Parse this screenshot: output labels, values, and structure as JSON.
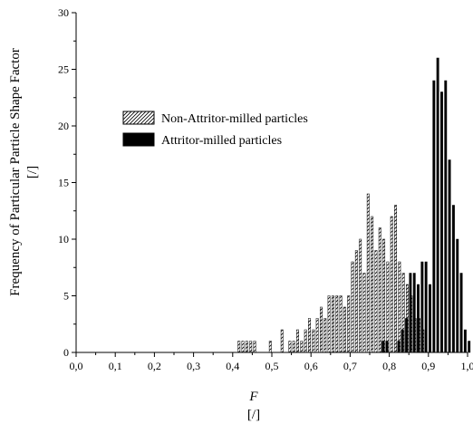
{
  "chart_data": {
    "type": "bar",
    "xlabel": "F",
    "xunit": "[/]",
    "ylabel": "Frequency of Particular Particle Shape Factor",
    "yunit": "[/]",
    "xlim": [
      0.0,
      1.0
    ],
    "ylim": [
      0,
      30
    ],
    "xticks": [
      "0,0",
      "0,1",
      "0,2",
      "0,3",
      "0,4",
      "0,5",
      "0,6",
      "0,7",
      "0,8",
      "0,9",
      "1,0"
    ],
    "yticks": [
      "0",
      "5",
      "10",
      "15",
      "20",
      "25",
      "30"
    ],
    "legend_position": "center-left",
    "grid": false,
    "series": [
      {
        "name": "Non-Attritor-milled particles",
        "fill": "hatched",
        "color": "#000000",
        "x": [
          0.42,
          0.43,
          0.44,
          0.45,
          0.46,
          0.5,
          0.53,
          0.55,
          0.56,
          0.57,
          0.58,
          0.59,
          0.6,
          0.61,
          0.62,
          0.63,
          0.64,
          0.65,
          0.66,
          0.67,
          0.68,
          0.69,
          0.7,
          0.71,
          0.72,
          0.73,
          0.74,
          0.75,
          0.76,
          0.77,
          0.78,
          0.79,
          0.8,
          0.81,
          0.82,
          0.83,
          0.84,
          0.85,
          0.86,
          0.87,
          0.88,
          0.89
        ],
        "values": [
          1,
          1,
          1,
          1,
          1,
          1,
          2,
          1,
          1,
          2,
          1,
          2,
          3,
          2,
          3,
          4,
          3,
          5,
          5,
          5,
          5,
          4,
          5,
          8,
          9,
          10,
          7,
          14,
          12,
          9,
          11,
          10,
          8,
          12,
          13,
          8,
          7,
          6,
          5,
          3,
          3,
          2
        ]
      },
      {
        "name": "Attritor-milled particles",
        "fill": "solid",
        "color": "#000000",
        "x": [
          0.78,
          0.79,
          0.82,
          0.83,
          0.84,
          0.85,
          0.86,
          0.87,
          0.88,
          0.89,
          0.9,
          0.91,
          0.92,
          0.93,
          0.94,
          0.95,
          0.96,
          0.97,
          0.98,
          0.99,
          1.0
        ],
        "values": [
          1,
          1,
          1,
          2,
          3,
          7,
          7,
          6,
          8,
          8,
          6,
          24,
          26,
          23,
          24,
          17,
          13,
          10,
          7,
          2,
          1
        ]
      }
    ]
  }
}
